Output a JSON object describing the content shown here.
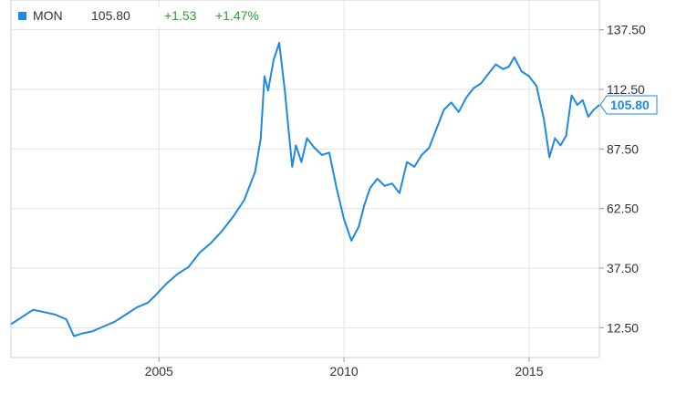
{
  "legend": {
    "ticker": "MON",
    "price": "105.80",
    "change": "+1.53",
    "change_pct": "+1.47%",
    "series_color": "#1e88e5",
    "positive_color": "#2ca02c"
  },
  "chart_data": {
    "type": "line",
    "title": "",
    "xlabel": "",
    "ylabel": "",
    "grid": true,
    "ylim": [
      0,
      150
    ],
    "xlim": [
      2001.0,
      2016.9
    ],
    "y_ticks": [
      12.5,
      37.5,
      62.5,
      87.5,
      112.5,
      137.5
    ],
    "y_tick_labels": [
      "12.50",
      "37.50",
      "62.50",
      "87.50",
      "112.50",
      "137.50"
    ],
    "x_ticks": [
      2005,
      2010,
      2015
    ],
    "x_tick_labels": [
      "2005",
      "2010",
      "2015"
    ],
    "last_value_label": "105.80",
    "series": [
      {
        "name": "MON",
        "color": "#1e88e5",
        "x": [
          2001.0,
          2001.3,
          2001.6,
          2001.9,
          2002.2,
          2002.5,
          2002.7,
          2002.9,
          2003.2,
          2003.5,
          2003.8,
          2004.1,
          2004.4,
          2004.7,
          2004.9,
          2005.2,
          2005.5,
          2005.8,
          2006.1,
          2006.4,
          2006.7,
          2007.0,
          2007.3,
          2007.6,
          2007.75,
          2007.85,
          2007.95,
          2008.1,
          2008.25,
          2008.4,
          2008.5,
          2008.6,
          2008.7,
          2008.85,
          2009.0,
          2009.2,
          2009.4,
          2009.6,
          2009.8,
          2010.0,
          2010.2,
          2010.4,
          2010.55,
          2010.7,
          2010.9,
          2011.1,
          2011.3,
          2011.5,
          2011.7,
          2011.9,
          2012.1,
          2012.3,
          2012.5,
          2012.7,
          2012.9,
          2013.1,
          2013.3,
          2013.5,
          2013.7,
          2013.9,
          2014.1,
          2014.3,
          2014.45,
          2014.6,
          2014.8,
          2015.0,
          2015.2,
          2015.4,
          2015.55,
          2015.7,
          2015.85,
          2016.0,
          2016.15,
          2016.3,
          2016.45,
          2016.6,
          2016.75,
          2016.9
        ],
        "values": [
          14,
          17,
          20,
          19,
          18,
          16,
          9,
          10,
          11,
          13,
          15,
          18,
          21,
          23,
          26,
          31,
          35,
          38,
          44,
          48,
          53,
          59,
          66,
          78,
          92,
          118,
          112,
          125,
          132,
          112,
          96,
          80,
          89,
          82,
          92,
          88,
          85,
          86,
          71,
          58,
          49,
          55,
          64,
          71,
          75,
          72,
          73,
          69,
          82,
          80,
          85,
          88,
          96,
          104,
          107,
          103,
          109,
          113,
          115,
          119,
          123,
          121,
          122,
          126,
          120,
          118,
          114,
          100,
          84,
          92,
          89,
          93,
          110,
          106,
          108,
          101,
          104,
          106
        ]
      }
    ]
  }
}
